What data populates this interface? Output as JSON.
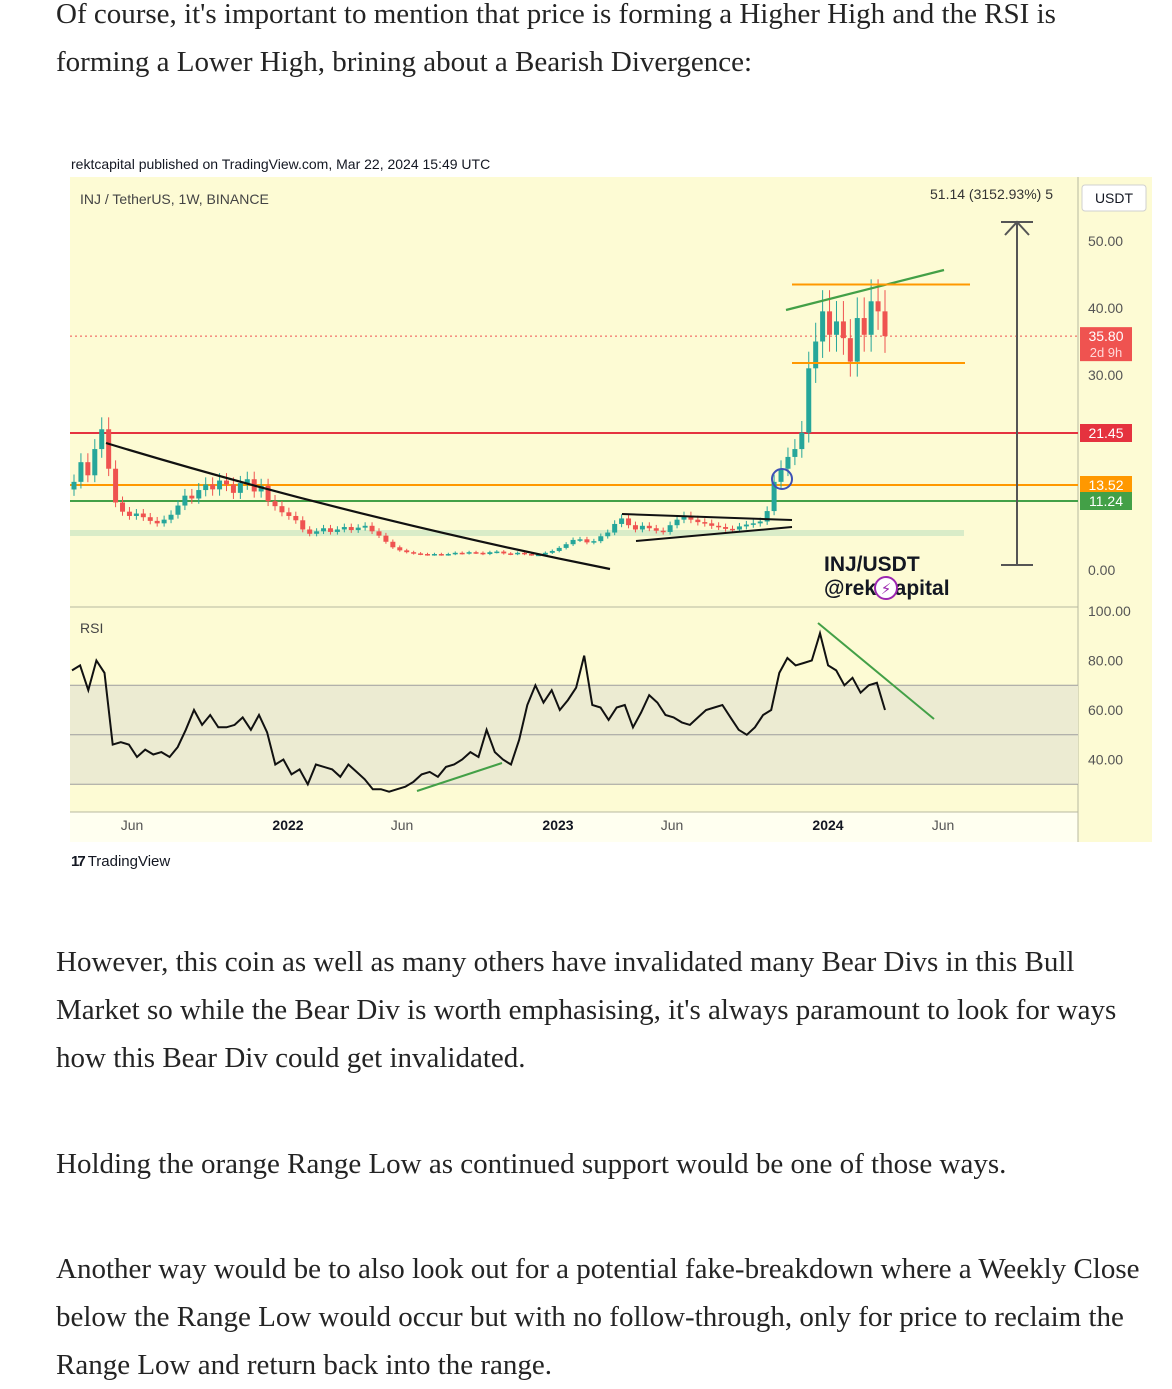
{
  "article": {
    "intro": "Of course, it's important to mention that price is forming a Higher High and the RSI is forming a Lower High, brining about a Bearish Divergence:",
    "para1": "However, this coin as well as many others have invalidated many Bear Divs in this Bull Market so while the Bear Div is worth emphasising, it's always paramount to look for ways how this Bear Div could get invalidated.",
    "para2": "Holding the orange Range Low as continued support would be one of those ways.",
    "para3": "Another way would be to also look out for a potential fake-breakdown where a Weekly Close below the Range Low would occur but with no follow-through, only for price to reclaim the Range Low and return back into the range."
  },
  "chart_caption": "rektcapital published on TradingView.com, Mar 22, 2024 15:49 UTC",
  "brand": {
    "logo_mark": "17",
    "name": "TradingView"
  },
  "chart_data": {
    "type": "candlestick",
    "symbol_label": "INJ / TetherUS, 1W, BINANCE",
    "measure_label": "51.14 (3152.93%) 5",
    "currency": "USDT",
    "watermark": {
      "line1": "INJ/USDT",
      "line2": "@rektcapital"
    },
    "price_axis_ticks": [
      "50.00",
      "40.00",
      "30.00",
      "0.00"
    ],
    "price_badges": [
      {
        "value": "35.80",
        "sub": "2d 9h",
        "color": "#ef5350"
      },
      {
        "value": "21.45",
        "color": "#e5323f"
      },
      {
        "value": "13.52",
        "color": "#ff9800"
      },
      {
        "value": "11.24",
        "color": "#43a047"
      }
    ],
    "time_axis_labels": [
      {
        "text": "Jun",
        "bold": false
      },
      {
        "text": "2022",
        "bold": true
      },
      {
        "text": "Jun",
        "bold": false
      },
      {
        "text": "2023",
        "bold": true
      },
      {
        "text": "Jun",
        "bold": false
      },
      {
        "text": "2024",
        "bold": true
      },
      {
        "text": "Jun",
        "bold": false
      }
    ],
    "levels": {
      "red": 21.45,
      "orange": 13.52,
      "green": 11.24,
      "current": 35.8
    },
    "range": {
      "high": 43.5,
      "low": 31.8
    },
    "price_series": [
      14,
      17,
      15,
      19,
      22,
      16,
      11,
      9.5,
      8.8,
      9.2,
      8.6,
      8.0,
      7.6,
      8.2,
      9.0,
      10.5,
      12.0,
      11.6,
      12.8,
      13.6,
      12.9,
      14.2,
      13.6,
      12.4,
      13.8,
      14.4,
      12.6,
      13.4,
      11.2,
      10.4,
      9.4,
      8.8,
      8.1,
      6.6,
      5.9,
      6.3,
      6.8,
      6.2,
      6.6,
      7.0,
      6.5,
      6.9,
      7.2,
      6.3,
      5.6,
      4.6,
      3.7,
      3.2,
      2.9,
      2.7,
      2.6,
      2.5,
      2.6,
      2.5,
      2.6,
      2.8,
      2.7,
      2.9,
      2.8,
      2.6,
      2.9,
      3.0,
      2.7,
      2.6,
      2.8,
      2.6,
      2.5,
      2.5,
      2.8,
      3.1,
      3.6,
      4.2,
      4.9,
      5.0,
      4.5,
      4.7,
      5.5,
      6.1,
      7.5,
      8.4,
      7.3,
      6.6,
      7.2,
      6.8,
      6.4,
      6.2,
      7.3,
      8.2,
      8.8,
      8.2,
      7.8,
      7.6,
      7.2,
      7.0,
      6.7,
      6.6,
      7.1,
      7.4,
      7.6,
      7.9,
      9.6,
      14.0,
      16.0,
      17.8,
      19.0,
      21.5,
      31.0,
      35.0,
      39.5,
      36.0,
      38.0,
      35.5,
      32.0,
      38.5,
      36.0,
      41.0,
      39.5,
      35.8
    ],
    "rsi_axis_ticks": [
      "100.00",
      "80.00",
      "60.00",
      "40.00"
    ],
    "rsi_label": "RSI",
    "rsi_band": [
      30,
      70
    ],
    "rsi_series": [
      76,
      78,
      68,
      80,
      75,
      46,
      47,
      46,
      41,
      44,
      42,
      43,
      41,
      45,
      52,
      60,
      54,
      58,
      53,
      53,
      54,
      57,
      52,
      58,
      51,
      38,
      40,
      34,
      36,
      30,
      38,
      37,
      36,
      33,
      38,
      35,
      32,
      28,
      28,
      27,
      28,
      29,
      31,
      34,
      35,
      33,
      37,
      38,
      40,
      43,
      41,
      52,
      43,
      40,
      38,
      48,
      62,
      70,
      63,
      68,
      60,
      64,
      69,
      82,
      62,
      61,
      56,
      61,
      62,
      53,
      59,
      66,
      63,
      58,
      57,
      55,
      54,
      57,
      60,
      61,
      62,
      57,
      52,
      50,
      53,
      58,
      60,
      75,
      81,
      78,
      79,
      80,
      91,
      78,
      76,
      70,
      73,
      67,
      70,
      71,
      60
    ],
    "annotations": {
      "price_higher_high": "rising green trendline over tops",
      "rsi_lower_high": "falling green trendline over RSI tops"
    }
  }
}
